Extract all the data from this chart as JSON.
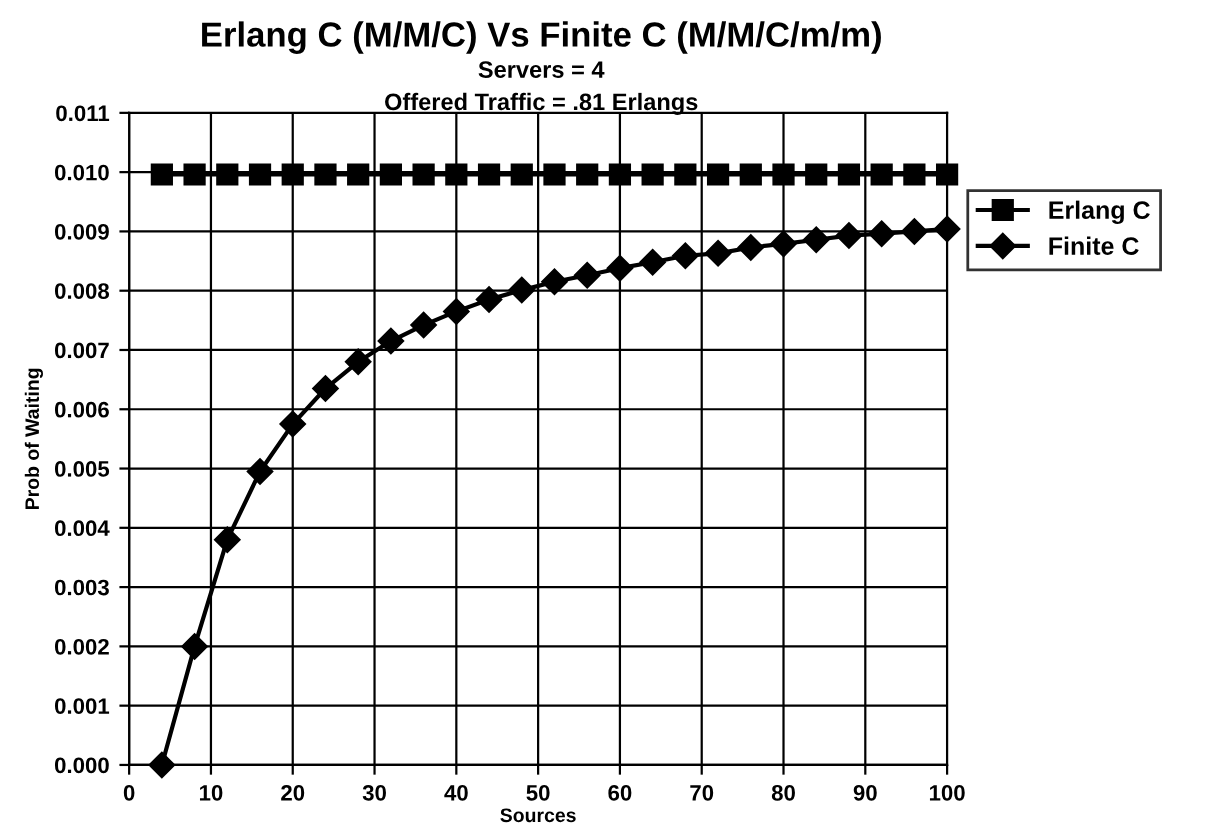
{
  "chart_data": {
    "type": "line",
    "title": "Erlang C (M/M/C) Vs Finite C (M/M/C/m/m)",
    "subtitle": "Servers = 4\nOffered Traffic = .81 Erlangs",
    "xlabel": "Sources",
    "ylabel": "Prob of Waiting",
    "x": [
      4,
      8,
      12,
      16,
      20,
      24,
      28,
      32,
      36,
      40,
      44,
      48,
      52,
      56,
      60,
      64,
      68,
      72,
      76,
      80,
      84,
      88,
      92,
      96,
      100
    ],
    "series": [
      {
        "name": "Erlang C",
        "color": "#000000",
        "marker": "square",
        "values": [
          0.00996,
          0.00996,
          0.00996,
          0.00996,
          0.00996,
          0.00996,
          0.00996,
          0.00996,
          0.00996,
          0.00996,
          0.00996,
          0.00996,
          0.00996,
          0.00996,
          0.00996,
          0.00996,
          0.00996,
          0.00996,
          0.00996,
          0.00996,
          0.00996,
          0.00996,
          0.00996,
          0.00996,
          0.00996
        ]
      },
      {
        "name": "Finite C",
        "color": "#000000",
        "marker": "diamond",
        "values": [
          0.0,
          0.002,
          0.0038,
          0.00495,
          0.00575,
          0.00635,
          0.0068,
          0.00715,
          0.00742,
          0.00765,
          0.00785,
          0.00801,
          0.00815,
          0.00826,
          0.00838,
          0.00848,
          0.00859,
          0.00863,
          0.00873,
          0.00879,
          0.00886,
          0.00893,
          0.00896,
          0.009,
          0.00904
        ]
      }
    ],
    "xlim": [
      0,
      100
    ],
    "xticks": [
      0,
      10,
      20,
      30,
      40,
      50,
      60,
      70,
      80,
      90,
      100
    ],
    "ylim": [
      0,
      0.011
    ],
    "yticks": [
      {
        "value": 0,
        "label": "0.000"
      },
      {
        "value": 0.001,
        "label": "0.001"
      },
      {
        "value": 0.002,
        "label": "0.002"
      },
      {
        "value": 0.003,
        "label": "0.003"
      },
      {
        "value": 0.004,
        "label": "0.004"
      },
      {
        "value": 0.005,
        "label": "0.005"
      },
      {
        "value": 0.006,
        "label": "0.006"
      },
      {
        "value": 0.007,
        "label": "0.007"
      },
      {
        "value": 0.008,
        "label": "0.008"
      },
      {
        "value": 0.009,
        "label": "0.009"
      },
      {
        "value": 0.01,
        "label": "0.010"
      },
      {
        "value": 0.011,
        "label": "0.011"
      }
    ],
    "grid": true,
    "legend": "right",
    "line_style": "solid"
  }
}
